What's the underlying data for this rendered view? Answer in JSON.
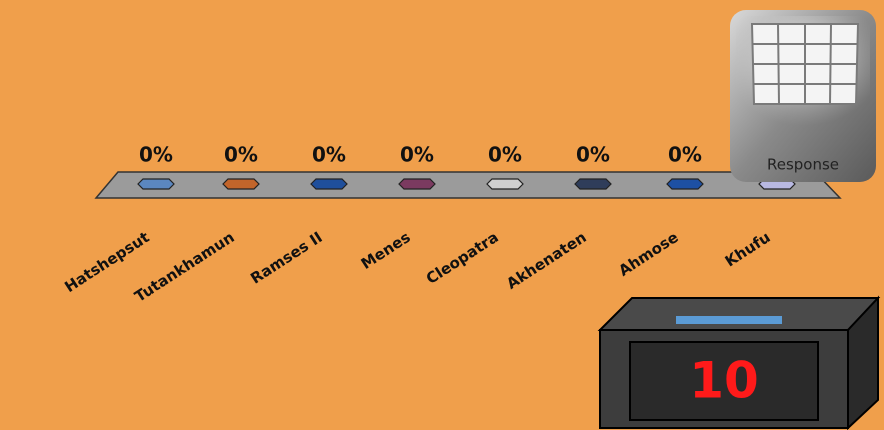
{
  "chart_data": {
    "type": "bar",
    "categories": [
      "Hatshepsut",
      "Tutankhamun",
      "Ramses II",
      "Menes",
      "Cleopatra",
      "Akhenaten",
      "Ahmose",
      "Khufu"
    ],
    "values": [
      0,
      0,
      0,
      0,
      0,
      0,
      0,
      0
    ],
    "value_labels": [
      "0%",
      "0%",
      "0%",
      "0%",
      "0%",
      "0%",
      "0%",
      null
    ],
    "colors": [
      "#5b87c0",
      "#c2652b",
      "#1f4f9c",
      "#7b3a60",
      "#cfcfcf",
      "#2f3d5a",
      "#1d50a3",
      "#b9b9e2"
    ],
    "ylim": [
      0,
      100
    ]
  },
  "response_button": {
    "label": "Response"
  },
  "timer": {
    "value": 10
  }
}
